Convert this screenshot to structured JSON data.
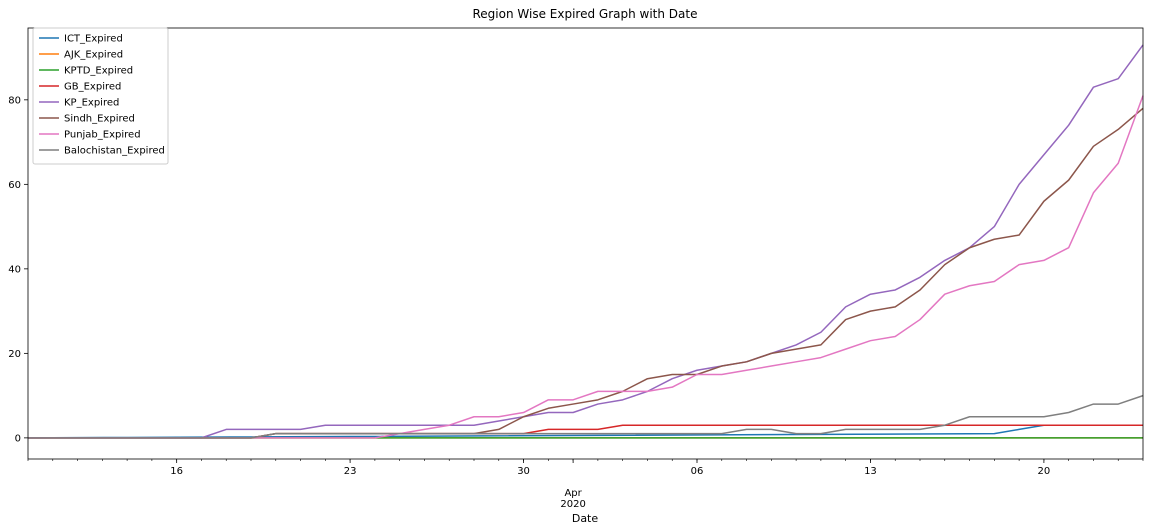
{
  "chart_data": {
    "type": "line",
    "title": "Region Wise Expired Graph with Date",
    "xlabel": "Date",
    "ylabel": "",
    "x_start": "2020-03-10",
    "x_end": "2020-04-24",
    "ylim": [
      -5,
      97
    ],
    "grid": false,
    "legend_position": "top-left",
    "x_ticks": [
      {
        "date": "2020-03-16",
        "label": "16"
      },
      {
        "date": "2020-03-23",
        "label": "23"
      },
      {
        "date": "2020-03-30",
        "label": "30"
      },
      {
        "date": "2020-04-06",
        "label": "06"
      },
      {
        "date": "2020-04-13",
        "label": "13"
      },
      {
        "date": "2020-04-20",
        "label": "20"
      }
    ],
    "x_month_label": {
      "date": "2020-04-01",
      "lines": [
        "Apr",
        "2020"
      ]
    },
    "y_ticks": [
      0,
      20,
      40,
      60,
      80
    ],
    "series": [
      {
        "name": "ICT_Expired",
        "color": "#1f77b4",
        "points": [
          [
            "2020-03-10",
            0
          ],
          [
            "2020-04-18",
            1
          ],
          [
            "2020-04-19",
            2
          ],
          [
            "2020-04-20",
            3
          ],
          [
            "2020-04-24",
            3
          ]
        ]
      },
      {
        "name": "AJK_Expired",
        "color": "#ff7f0e",
        "points": [
          [
            "2020-03-10",
            0
          ],
          [
            "2020-04-24",
            0
          ]
        ]
      },
      {
        "name": "KPTD_Expired",
        "color": "#2ca02c",
        "points": [
          [
            "2020-03-10",
            0
          ],
          [
            "2020-04-24",
            0
          ]
        ]
      },
      {
        "name": "GB_Expired",
        "color": "#d62728",
        "points": [
          [
            "2020-03-10",
            0
          ],
          [
            "2020-03-19",
            0
          ],
          [
            "2020-03-20",
            1
          ],
          [
            "2020-03-29",
            1
          ],
          [
            "2020-03-30",
            1
          ],
          [
            "2020-03-31",
            2
          ],
          [
            "2020-04-02",
            2
          ],
          [
            "2020-04-03",
            3
          ],
          [
            "2020-04-24",
            3
          ]
        ]
      },
      {
        "name": "KP_Expired",
        "color": "#9467bd",
        "points": [
          [
            "2020-03-10",
            0
          ],
          [
            "2020-03-17",
            0
          ],
          [
            "2020-03-18",
            2
          ],
          [
            "2020-03-21",
            2
          ],
          [
            "2020-03-22",
            3
          ],
          [
            "2020-03-28",
            3
          ],
          [
            "2020-03-29",
            4
          ],
          [
            "2020-03-30",
            5
          ],
          [
            "2020-03-31",
            6
          ],
          [
            "2020-04-01",
            6
          ],
          [
            "2020-04-02",
            8
          ],
          [
            "2020-04-03",
            9
          ],
          [
            "2020-04-04",
            11
          ],
          [
            "2020-04-05",
            14
          ],
          [
            "2020-04-06",
            16
          ],
          [
            "2020-04-07",
            17
          ],
          [
            "2020-04-08",
            18
          ],
          [
            "2020-04-09",
            20
          ],
          [
            "2020-04-10",
            22
          ],
          [
            "2020-04-11",
            25
          ],
          [
            "2020-04-12",
            31
          ],
          [
            "2020-04-13",
            34
          ],
          [
            "2020-04-14",
            35
          ],
          [
            "2020-04-15",
            38
          ],
          [
            "2020-04-16",
            42
          ],
          [
            "2020-04-17",
            45
          ],
          [
            "2020-04-18",
            50
          ],
          [
            "2020-04-19",
            60
          ],
          [
            "2020-04-20",
            67
          ],
          [
            "2020-04-21",
            74
          ],
          [
            "2020-04-22",
            83
          ],
          [
            "2020-04-23",
            85
          ],
          [
            "2020-04-24",
            93
          ]
        ]
      },
      {
        "name": "Sindh_Expired",
        "color": "#8c564b",
        "points": [
          [
            "2020-03-10",
            0
          ],
          [
            "2020-03-19",
            0
          ],
          [
            "2020-03-20",
            1
          ],
          [
            "2020-03-27",
            1
          ],
          [
            "2020-03-28",
            1
          ],
          [
            "2020-03-29",
            2
          ],
          [
            "2020-03-30",
            5
          ],
          [
            "2020-03-31",
            7
          ],
          [
            "2020-04-01",
            8
          ],
          [
            "2020-04-02",
            9
          ],
          [
            "2020-04-03",
            11
          ],
          [
            "2020-04-04",
            14
          ],
          [
            "2020-04-05",
            15
          ],
          [
            "2020-04-06",
            15
          ],
          [
            "2020-04-07",
            17
          ],
          [
            "2020-04-08",
            18
          ],
          [
            "2020-04-09",
            20
          ],
          [
            "2020-04-10",
            21
          ],
          [
            "2020-04-11",
            22
          ],
          [
            "2020-04-12",
            28
          ],
          [
            "2020-04-13",
            30
          ],
          [
            "2020-04-14",
            31
          ],
          [
            "2020-04-15",
            35
          ],
          [
            "2020-04-16",
            41
          ],
          [
            "2020-04-17",
            45
          ],
          [
            "2020-04-18",
            47
          ],
          [
            "2020-04-19",
            48
          ],
          [
            "2020-04-20",
            56
          ],
          [
            "2020-04-21",
            61
          ],
          [
            "2020-04-22",
            69
          ],
          [
            "2020-04-23",
            73
          ],
          [
            "2020-04-24",
            78
          ]
        ]
      },
      {
        "name": "Punjab_Expired",
        "color": "#e377c2",
        "points": [
          [
            "2020-03-10",
            0
          ],
          [
            "2020-03-23",
            0
          ],
          [
            "2020-03-24",
            0
          ],
          [
            "2020-03-25",
            1
          ],
          [
            "2020-03-26",
            2
          ],
          [
            "2020-03-27",
            3
          ],
          [
            "2020-03-28",
            5
          ],
          [
            "2020-03-29",
            5
          ],
          [
            "2020-03-30",
            6
          ],
          [
            "2020-03-31",
            9
          ],
          [
            "2020-04-01",
            9
          ],
          [
            "2020-04-02",
            11
          ],
          [
            "2020-04-03",
            11
          ],
          [
            "2020-04-04",
            11
          ],
          [
            "2020-04-05",
            12
          ],
          [
            "2020-04-06",
            15
          ],
          [
            "2020-04-07",
            15
          ],
          [
            "2020-04-08",
            16
          ],
          [
            "2020-04-09",
            17
          ],
          [
            "2020-04-10",
            18
          ],
          [
            "2020-04-11",
            19
          ],
          [
            "2020-04-12",
            21
          ],
          [
            "2020-04-13",
            23
          ],
          [
            "2020-04-14",
            24
          ],
          [
            "2020-04-15",
            28
          ],
          [
            "2020-04-16",
            34
          ],
          [
            "2020-04-17",
            36
          ],
          [
            "2020-04-18",
            37
          ],
          [
            "2020-04-19",
            41
          ],
          [
            "2020-04-20",
            42
          ],
          [
            "2020-04-21",
            45
          ],
          [
            "2020-04-22",
            58
          ],
          [
            "2020-04-23",
            65
          ],
          [
            "2020-04-24",
            81
          ]
        ]
      },
      {
        "name": "Balochistan_Expired",
        "color": "#7f7f7f",
        "points": [
          [
            "2020-03-10",
            0
          ],
          [
            "2020-03-19",
            0
          ],
          [
            "2020-03-20",
            1
          ],
          [
            "2020-04-06",
            1
          ],
          [
            "2020-04-07",
            1
          ],
          [
            "2020-04-08",
            2
          ],
          [
            "2020-04-09",
            2
          ],
          [
            "2020-04-10",
            1
          ],
          [
            "2020-04-11",
            1
          ],
          [
            "2020-04-12",
            2
          ],
          [
            "2020-04-15",
            2
          ],
          [
            "2020-04-16",
            3
          ],
          [
            "2020-04-17",
            5
          ],
          [
            "2020-04-20",
            5
          ],
          [
            "2020-04-21",
            6
          ],
          [
            "2020-04-22",
            8
          ],
          [
            "2020-04-23",
            8
          ],
          [
            "2020-04-24",
            10
          ]
        ]
      }
    ]
  }
}
